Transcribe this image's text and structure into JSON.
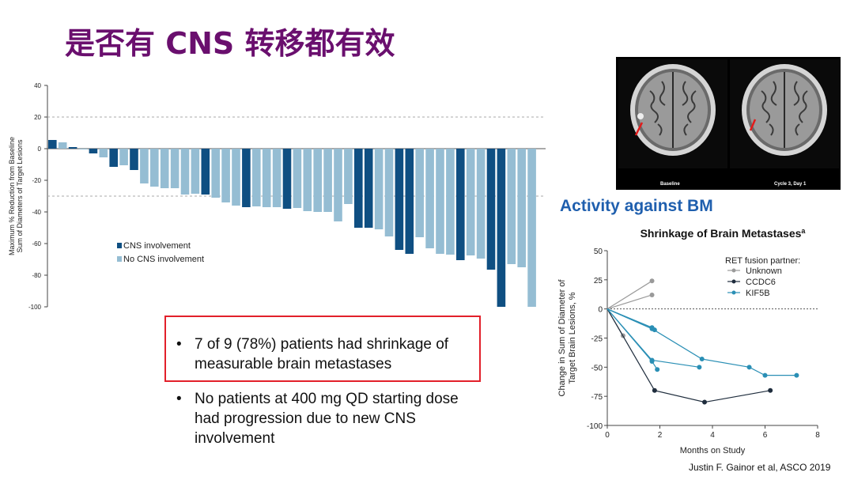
{
  "title": "是否有 CNS 转移都有效",
  "activity_heading": "Activity against BM",
  "bullets": [
    "7 of 9 (78%) patients had shrinkage of measurable brain metastases",
    "No patients at 400 mg QD starting dose had progression due to new CNS involvement"
  ],
  "bullet_glyph": "•",
  "citation": "Justin F. Gainor et al, ASCO 2019",
  "brain_images": {
    "left_caption": "Baseline",
    "right_caption": "Cycle 3, Day 1"
  },
  "colors": {
    "title": "#6a0f6e",
    "cns": "#0f4f82",
    "no_cns": "#95bdd3",
    "unknown": "#9a9a9a",
    "ccdc6": "#1f2d3d",
    "kif5b": "#2a8fb5",
    "highlight": "#e2202a",
    "heading": "#1f5fae"
  },
  "chart_data": [
    {
      "type": "bar",
      "ylabel": "Maximum % Reduction from Baseline\nSum of Diameters of Target Lesions",
      "ylim": [
        -100,
        40
      ],
      "yticks": [
        40,
        20,
        0,
        -20,
        -40,
        -60,
        -80,
        -100
      ],
      "reference_lines": [
        20,
        -30
      ],
      "legend": [
        "CNS involvement",
        "No CNS involvement"
      ],
      "legend_position": "center-left",
      "series": [
        {
          "name": "CNS involvement",
          "points": [
            [
              1,
              5.5
            ],
            [
              3,
              1
            ],
            [
              5,
              -3
            ],
            [
              7,
              -11.5
            ],
            [
              9,
              -13.5
            ],
            [
              16,
              -29
            ],
            [
              20,
              -37
            ],
            [
              24,
              -38
            ],
            [
              31,
              -50
            ],
            [
              32,
              -50
            ],
            [
              35,
              -64
            ],
            [
              36,
              -66.5
            ],
            [
              41,
              -70.5
            ],
            [
              44,
              -76.5
            ],
            [
              45,
              -100
            ]
          ]
        },
        {
          "name": "No CNS involvement",
          "points": [
            [
              2,
              4
            ],
            [
              4,
              0
            ],
            [
              6,
              -5.5
            ],
            [
              8,
              -10.5
            ],
            [
              10,
              -22
            ],
            [
              11,
              -24
            ],
            [
              12,
              -25
            ],
            [
              13,
              -25
            ],
            [
              14,
              -29
            ],
            [
              15,
              -28.5
            ],
            [
              17,
              -31
            ],
            [
              18,
              -34
            ],
            [
              19,
              -36
            ],
            [
              21,
              -36.5
            ],
            [
              22,
              -37
            ],
            [
              23,
              -37
            ],
            [
              25,
              -37.5
            ],
            [
              26,
              -39.5
            ],
            [
              27,
              -40
            ],
            [
              28,
              -40
            ],
            [
              29,
              -46
            ],
            [
              30,
              -35
            ],
            [
              33,
              -51
            ],
            [
              34,
              -55.5
            ],
            [
              37,
              -56
            ],
            [
              38,
              -63
            ],
            [
              39,
              -66.5
            ],
            [
              40,
              -67
            ],
            [
              42,
              -67.5
            ],
            [
              43,
              -69.5
            ],
            [
              46,
              -73
            ],
            [
              47,
              -75
            ],
            [
              48,
              -100
            ]
          ]
        }
      ]
    },
    {
      "type": "line",
      "title": "Shrinkage of Brain Metastases",
      "title_superscript": "a",
      "xlabel": "Months on Study",
      "ylabel": "Change in Sum of Diameter of\nTarget Brain Lesions, %",
      "xlim": [
        0,
        8
      ],
      "ylim": [
        -100,
        50
      ],
      "xticks": [
        0,
        2,
        4,
        6,
        8
      ],
      "yticks": [
        50,
        25,
        0,
        -25,
        -50,
        -75,
        -100
      ],
      "legend_title": "RET fusion partner:",
      "legend_position": "top-right",
      "series": [
        {
          "name": "Unknown",
          "points": [
            [
              0,
              0
            ],
            [
              1.7,
              24
            ]
          ]
        },
        {
          "name": "Unknown",
          "points": [
            [
              0,
              0
            ],
            [
              1.7,
              12
            ]
          ]
        },
        {
          "name": "Unknown",
          "points": [
            [
              0,
              0
            ],
            [
              0.6,
              -23
            ]
          ]
        },
        {
          "name": "CCDC6",
          "points": [
            [
              0,
              0
            ],
            [
              1.8,
              -70
            ],
            [
              3.7,
              -80
            ],
            [
              6.2,
              -70
            ]
          ]
        },
        {
          "name": "KIF5B",
          "points": [
            [
              0,
              0
            ],
            [
              1.7,
              -16
            ]
          ]
        },
        {
          "name": "KIF5B",
          "points": [
            [
              0,
              0
            ],
            [
              1.8,
              -18
            ]
          ]
        },
        {
          "name": "KIF5B",
          "points": [
            [
              0,
              0
            ],
            [
              1.7,
              -44
            ],
            [
              3.5,
              -50
            ]
          ]
        },
        {
          "name": "KIF5B",
          "points": [
            [
              0,
              0
            ],
            [
              1.7,
              -45
            ],
            [
              1.9,
              -52
            ]
          ]
        },
        {
          "name": "KIF5B",
          "points": [
            [
              0,
              0
            ],
            [
              1.7,
              -17
            ],
            [
              3.6,
              -43
            ],
            [
              5.4,
              -50
            ],
            [
              6.0,
              -57
            ],
            [
              7.2,
              -57
            ]
          ]
        }
      ]
    }
  ]
}
